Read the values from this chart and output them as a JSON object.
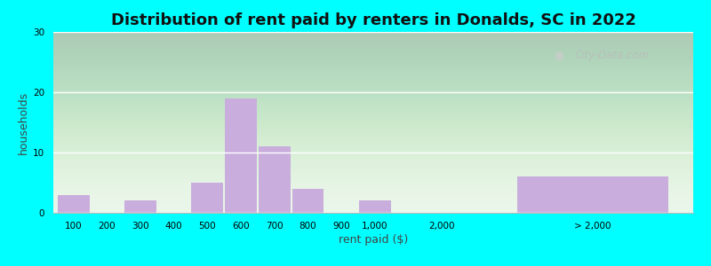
{
  "title": "Distribution of rent paid by renters in Donalds, SC in 2022",
  "xlabel": "rent paid ($)",
  "ylabel": "households",
  "bar_color": "#c9aedd",
  "outer_bg": "#00ffff",
  "ylim": [
    0,
    30
  ],
  "yticks": [
    0,
    10,
    20,
    30
  ],
  "bars_values": [
    3,
    0,
    2,
    0,
    5,
    19,
    11,
    4,
    0,
    2
  ],
  "bars_labels": [
    "100",
    "200",
    "300",
    "400",
    "500",
    "600",
    "700",
    "800",
    "900",
    "1,000"
  ],
  "special_bar_value": 6,
  "special_bar_label": "> 2,000",
  "mid_label": "2,000",
  "watermark": "City-Data.com",
  "title_fontsize": 13,
  "axis_label_fontsize": 9,
  "tick_fontsize": 7.5
}
